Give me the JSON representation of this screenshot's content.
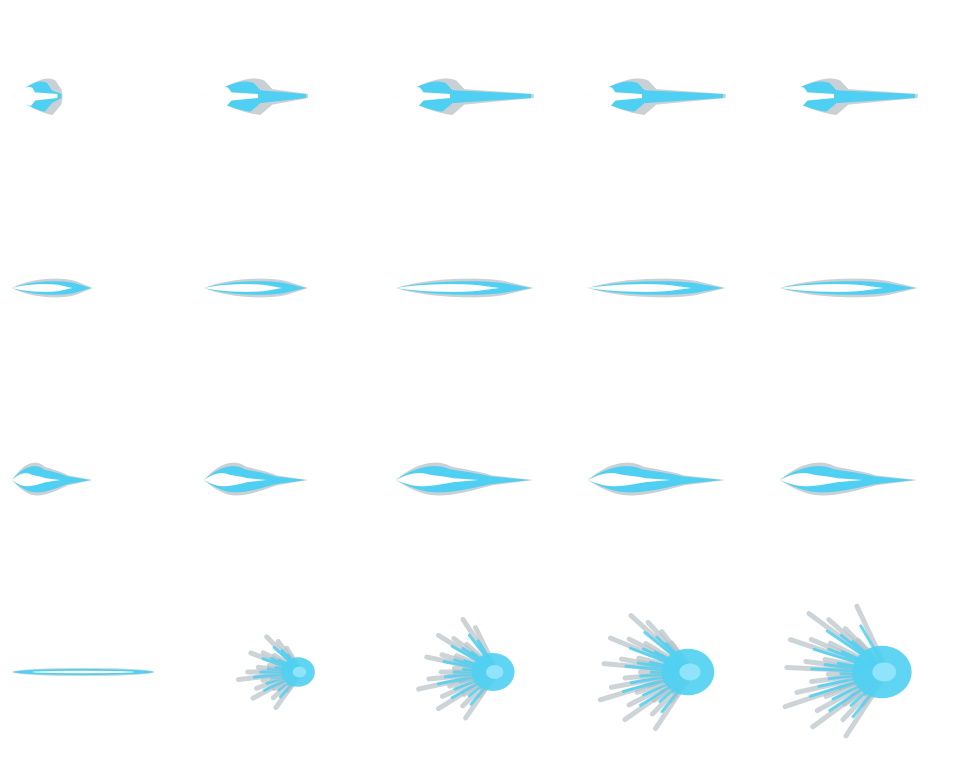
{
  "sheet": {
    "background": "#ffffff",
    "columns": 5,
    "rows": 4,
    "colors": {
      "outer_smoke": "#b8c2c8",
      "edge_blue": "#4fd0f2",
      "mid_blue": "#8fe4fb",
      "core": "#ffffff"
    },
    "rows_data": [
      {
        "name": "flame-burst-row",
        "frames": [
          {
            "kind": "flare",
            "length": 0.3
          },
          {
            "kind": "flare",
            "length": 0.62
          },
          {
            "kind": "flare",
            "length": 0.82
          },
          {
            "kind": "flare",
            "length": 0.82
          },
          {
            "kind": "flare",
            "length": 0.82
          }
        ]
      },
      {
        "name": "slim-beam-row",
        "frames": [
          {
            "kind": "slim",
            "length": 0.48
          },
          {
            "kind": "slim",
            "length": 0.62
          },
          {
            "kind": "slim",
            "length": 0.82
          },
          {
            "kind": "slim",
            "length": 0.82
          },
          {
            "kind": "slim",
            "length": 0.82
          }
        ]
      },
      {
        "name": "wavy-beam-row",
        "frames": [
          {
            "kind": "wavy",
            "length": 0.48
          },
          {
            "kind": "wavy",
            "length": 0.62
          },
          {
            "kind": "wavy",
            "length": 0.82
          },
          {
            "kind": "wavy",
            "length": 0.82
          },
          {
            "kind": "wavy",
            "length": 0.82
          }
        ]
      },
      {
        "name": "impact-row",
        "frames": [
          {
            "kind": "line",
            "length": 0.85
          },
          {
            "kind": "splash",
            "size": 0.35
          },
          {
            "kind": "splash",
            "size": 0.45
          },
          {
            "kind": "splash",
            "size": 0.55
          },
          {
            "kind": "splash",
            "size": 0.62
          }
        ]
      }
    ]
  }
}
